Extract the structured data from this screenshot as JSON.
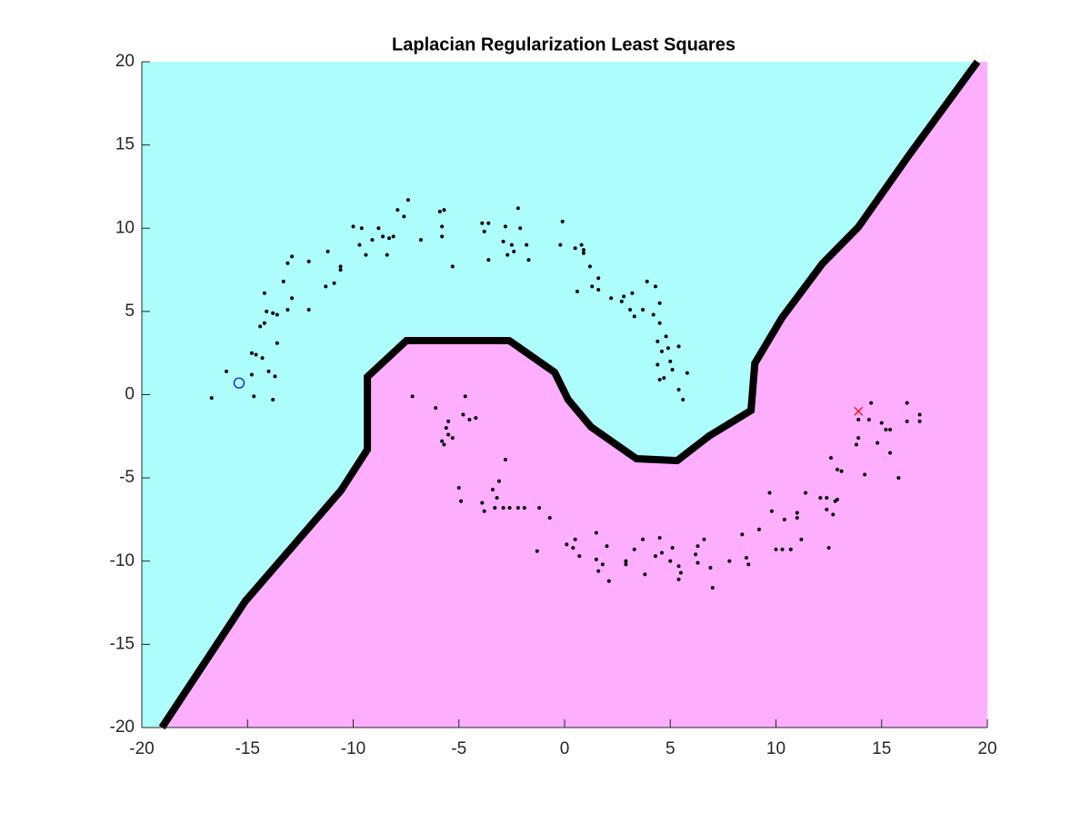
{
  "chart_data": {
    "type": "scatter",
    "title": "Laplacian Regularization Least Squares",
    "xlim": [
      -20,
      20
    ],
    "ylim": [
      -20,
      20
    ],
    "xticks": [
      -20,
      -15,
      -10,
      -5,
      0,
      5,
      10,
      15,
      20
    ],
    "yticks": [
      -20,
      -15,
      -10,
      -5,
      0,
      5,
      10,
      15,
      20
    ],
    "region_colors": [
      "#adfdfd",
      "#fdaefd"
    ],
    "boundary": {
      "color": "#000000",
      "x": [
        -19.05,
        -15.1,
        -10.58,
        -9.33,
        -9.33,
        -7.48,
        -2.62,
        -0.47,
        0.17,
        1.25,
        3.4,
        5.33,
        6.84,
        8.82,
        9.0,
        10.28,
        12.2,
        13.9,
        16.3,
        19.53
      ],
      "y": [
        -20,
        -12.4,
        -5.76,
        -3.3,
        1.07,
        3.25,
        3.25,
        1.34,
        -0.3,
        -1.94,
        -3.85,
        -3.96,
        -2.48,
        -0.95,
        1.88,
        4.61,
        7.88,
        10.07,
        14.4,
        20
      ]
    },
    "series": [
      {
        "color": "#000000",
        "marker": ".",
        "x": [
          -16.7,
          -16,
          -14.8,
          -14.8,
          -14.6,
          -14.3,
          -14,
          -14.7,
          -13.8,
          -13.7,
          -13.6,
          -14.4,
          -14.2,
          -14.1,
          -13.8,
          -13.6,
          -14.2,
          -13.1,
          -12.9,
          -12.9,
          -13.1,
          -13.3,
          -12.1,
          -12.1,
          -11.3,
          -11.2,
          -10.9,
          -10.6,
          -10.6,
          -10,
          -9.7,
          -9.6,
          -9.4,
          -9.1,
          -8.8,
          -8.6,
          -8.3,
          -8.4,
          -8.1,
          -7.9,
          -7.6,
          -7.4,
          -6.8,
          -5.8,
          -5.9,
          -5.7,
          -5.8,
          -5.3,
          -3.9,
          -3.8,
          -3.6,
          -3.6,
          -2.9,
          -2.8,
          -2.7,
          -2.5,
          -2.4,
          -2.2,
          -2.1,
          -1.8,
          -1.7,
          -0.1,
          -0.2,
          0.5,
          0.8,
          0.9,
          0.9,
          0.6,
          1.2,
          1.3,
          1.6,
          1.6,
          2.2,
          2.7,
          2.8,
          3.1,
          3.2,
          3.3,
          3.7,
          3.9,
          4.2,
          4.3,
          4.5,
          4.4,
          4.8,
          4.5,
          4.6,
          4.4,
          5.4,
          5,
          5.1,
          4.5,
          4.7,
          4.9,
          5.8,
          5.6,
          5.4
        ],
        "y": [
          -0.2,
          1.4,
          1.2,
          2.5,
          2.4,
          2.2,
          1.4,
          -0.1,
          -0.3,
          1.1,
          3.1,
          4.1,
          4.3,
          5,
          4.9,
          4.8,
          6.1,
          5.1,
          5.8,
          8.3,
          7.9,
          6.8,
          8,
          5.1,
          6.5,
          8.6,
          6.7,
          7.5,
          7.7,
          10.1,
          9,
          10,
          8.4,
          9.3,
          10,
          9.5,
          9.4,
          8.4,
          9.5,
          11.1,
          10.7,
          11.7,
          9.3,
          9.5,
          11,
          11.1,
          10.1,
          7.7,
          10.3,
          9.8,
          10.3,
          8.1,
          9.2,
          10.1,
          8.4,
          9,
          8.6,
          11.2,
          10,
          9,
          8.1,
          10.4,
          9,
          8.8,
          9,
          8.5,
          8.7,
          6.2,
          7.7,
          6.5,
          7,
          6.3,
          5.8,
          5.6,
          5.9,
          5.1,
          6.1,
          4.7,
          5.1,
          6.8,
          4.8,
          6.5,
          5.5,
          3.2,
          3.5,
          4.3,
          2.6,
          1.8,
          2.9,
          2,
          1.5,
          0.9,
          1,
          2.8,
          1.3,
          -0.3,
          0.3
        ]
      },
      {
        "color": "#000000",
        "marker": ".",
        "x": [
          -7.2,
          -6.1,
          -5.5,
          -5.6,
          -5.5,
          -5.8,
          -5.7,
          -5.3,
          -4.8,
          -4.7,
          -4.5,
          -4.2,
          -5,
          -4.9,
          -3.9,
          -3.8,
          -3.2,
          -3.1,
          -3.4,
          -2.8,
          -3.3,
          -2.9,
          -2.6,
          -2.2,
          -1.9,
          -1.2,
          -0.7,
          -1.3,
          0.1,
          0.5,
          0.4,
          0.7,
          1.5,
          1.5,
          1.6,
          1.8,
          2.1,
          2,
          2.9,
          2.9,
          3.3,
          3.7,
          3.8,
          4.3,
          4.6,
          4.5,
          5,
          5.1,
          5.4,
          5.5,
          5.4,
          6.3,
          6.2,
          6.3,
          6.6,
          6.9,
          7,
          7.8,
          8.4,
          8.6,
          8.7,
          9.2,
          9.7,
          9.8,
          10,
          10.3,
          10.4,
          10.7,
          11,
          11,
          11.2,
          11.4,
          12.1,
          12.4,
          12.5,
          12.4,
          12.7,
          12.9,
          12.8,
          12.6,
          12.9,
          13.1,
          13.8,
          13.9,
          13.9,
          14.4,
          14.2,
          14.5,
          14.8,
          15,
          15.2,
          15.4,
          15.4,
          15.8,
          16.2,
          16.2,
          16.8,
          16.8
        ],
        "y": [
          -0.1,
          -0.8,
          -1.6,
          -2,
          -2.4,
          -2.8,
          -3,
          -2.6,
          -1.2,
          -0.1,
          -1.5,
          -1.4,
          -5.6,
          -6.4,
          -6.5,
          -7,
          -6.2,
          -5.2,
          -5.7,
          -3.9,
          -6.8,
          -6.8,
          -6.8,
          -6.8,
          -6.8,
          -6.8,
          -7.4,
          -9.4,
          -9,
          -8.7,
          -9.2,
          -9.7,
          -8.3,
          -9.9,
          -10.6,
          -10.2,
          -11.2,
          -9.1,
          -10.2,
          -10,
          -9.3,
          -8.7,
          -10.8,
          -9.7,
          -9.5,
          -8.6,
          -10,
          -9.2,
          -10.3,
          -10.7,
          -11.1,
          -9.1,
          -9.6,
          -10.1,
          -8.7,
          -10.4,
          -11.6,
          -10,
          -8.4,
          -9.8,
          -10.2,
          -8.1,
          -5.9,
          -7,
          -9.3,
          -9.3,
          -7.5,
          -9.3,
          -7.1,
          -7.4,
          -8.7,
          -5.9,
          -6.2,
          -6.9,
          -9.2,
          -6.2,
          -7.2,
          -6.3,
          -6.4,
          -3.8,
          -4.5,
          -4.6,
          -3,
          -2.6,
          -1.5,
          -1.5,
          -4.8,
          -0.5,
          -2.9,
          -1.7,
          -2.1,
          -3.5,
          -2.1,
          -5,
          -0.5,
          -1.6,
          -1.2,
          -1.6
        ]
      },
      {
        "color": "#0000ff",
        "marker": "o",
        "x": [
          -15.4
        ],
        "y": [
          0.7
        ]
      },
      {
        "color": "#ff0000",
        "marker": "x",
        "x": [
          13.9
        ],
        "y": [
          -1.0
        ]
      }
    ]
  }
}
